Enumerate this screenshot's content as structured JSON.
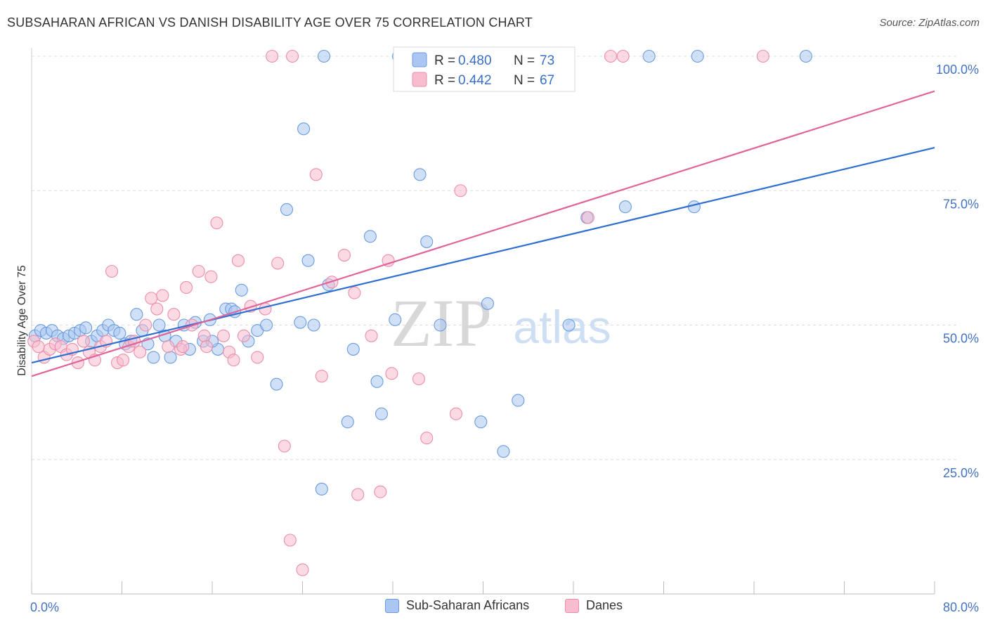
{
  "title": "SUBSAHARAN AFRICAN VS DANISH DISABILITY AGE OVER 75 CORRELATION CHART",
  "source": "Source: ZipAtlas.com",
  "watermark": {
    "zip": "ZIP",
    "atlas": "atlas"
  },
  "legend": {
    "r_label": "R =",
    "n_label": "N =",
    "rows": [
      {
        "r": "0.480",
        "n": "73",
        "color": "#a9c7f0",
        "stroke": "#6a9be0",
        "value_color": "#3a6fc4"
      },
      {
        "r": "0.442",
        "n": "67",
        "color": "#f7bccd",
        "stroke": "#ec8ea9",
        "value_color": "#3a6fc4"
      }
    ]
  },
  "bottom_legend": [
    {
      "label": "Sub-Saharan Africans",
      "color": "#a9c7f0",
      "stroke": "#6a9be0"
    },
    {
      "label": "Danes",
      "color": "#f7bccd",
      "stroke": "#ec8ea9"
    }
  ],
  "chart_data": {
    "type": "scatter",
    "title": "SUBSAHARAN AFRICAN VS DANISH DISABILITY AGE OVER 75 CORRELATION CHART",
    "xlabel": "",
    "ylabel": "Disability Age Over 75",
    "xlim": [
      0,
      80
    ],
    "ylim": [
      0,
      100
    ],
    "x_ticks": [
      "0.0%",
      "80.0%"
    ],
    "y_ticks": [
      {
        "value": 25,
        "label": "25.0%"
      },
      {
        "value": 50,
        "label": "50.0%"
      },
      {
        "value": 75,
        "label": "75.0%"
      },
      {
        "value": 100,
        "label": "100.0%"
      }
    ],
    "grid": true,
    "legend_position": "top-center",
    "series": [
      {
        "name": "Sub-Saharan Africans",
        "color": "#6a9be0",
        "fill": "#a9c7f0",
        "trend": {
          "x": [
            0,
            80
          ],
          "y": [
            43.0,
            83.0
          ],
          "color": "#2f6fd1"
        },
        "points": [
          [
            0.3,
            48
          ],
          [
            0.8,
            49
          ],
          [
            1.3,
            48.5
          ],
          [
            1.8,
            49
          ],
          [
            2.3,
            48
          ],
          [
            2.8,
            47.5
          ],
          [
            3.3,
            48
          ],
          [
            3.8,
            48.5
          ],
          [
            4.3,
            49
          ],
          [
            4.8,
            49.5
          ],
          [
            5.3,
            47
          ],
          [
            5.8,
            48
          ],
          [
            6.3,
            49
          ],
          [
            6.8,
            50
          ],
          [
            7.3,
            49
          ],
          [
            7.8,
            48.5
          ],
          [
            8.3,
            46.5
          ],
          [
            8.8,
            47
          ],
          [
            9.3,
            52
          ],
          [
            9.8,
            49
          ],
          [
            10.3,
            46.5
          ],
          [
            10.8,
            44
          ],
          [
            11.3,
            50
          ],
          [
            11.8,
            48
          ],
          [
            12.3,
            44
          ],
          [
            12.8,
            47
          ],
          [
            13.5,
            50
          ],
          [
            14.0,
            45.5
          ],
          [
            14.5,
            50.5
          ],
          [
            15.2,
            47
          ],
          [
            15.8,
            51
          ],
          [
            16.5,
            45.5
          ],
          [
            17.2,
            53
          ],
          [
            17.7,
            53
          ],
          [
            18.0,
            52.5
          ],
          [
            18.6,
            56.5
          ],
          [
            19.2,
            47
          ],
          [
            20.0,
            49
          ],
          [
            20.8,
            50
          ],
          [
            21.7,
            39
          ],
          [
            22.6,
            71.5
          ],
          [
            23.8,
            50.5
          ],
          [
            24.1,
            86.5
          ],
          [
            24.5,
            62
          ],
          [
            25.0,
            50
          ],
          [
            25.7,
            19.5
          ],
          [
            25.9,
            100
          ],
          [
            26.3,
            57.5
          ],
          [
            28.0,
            32
          ],
          [
            28.5,
            45.5
          ],
          [
            30.0,
            66.5
          ],
          [
            30.6,
            39.5
          ],
          [
            31.0,
            33.5
          ],
          [
            32.2,
            51
          ],
          [
            33.0,
            100
          ],
          [
            34.4,
            78
          ],
          [
            35.0,
            65.5
          ],
          [
            36.2,
            50
          ],
          [
            39.8,
            32
          ],
          [
            40.4,
            54
          ],
          [
            41.8,
            26.5
          ],
          [
            43.1,
            36
          ],
          [
            47.6,
            50
          ],
          [
            49.2,
            70
          ],
          [
            52.6,
            72
          ],
          [
            54.7,
            100
          ],
          [
            58.7,
            72
          ],
          [
            59.0,
            100
          ],
          [
            68.6,
            100
          ],
          [
            32.5,
            100
          ],
          [
            36.8,
            100
          ],
          [
            43.5,
            100
          ],
          [
            16.0,
            47
          ]
        ]
      },
      {
        "name": "Danes",
        "color": "#ec8ea9",
        "fill": "#f7bccd",
        "trend": {
          "x": [
            0,
            80
          ],
          "y": [
            40.5,
            93.5
          ],
          "color": "#e0649a"
        },
        "points": [
          [
            0.2,
            47
          ],
          [
            0.6,
            46
          ],
          [
            1.1,
            44
          ],
          [
            1.6,
            45.5
          ],
          [
            2.1,
            46.5
          ],
          [
            2.6,
            46
          ],
          [
            3.1,
            44.5
          ],
          [
            3.6,
            45.5
          ],
          [
            4.1,
            43
          ],
          [
            4.6,
            47
          ],
          [
            5.1,
            45
          ],
          [
            5.6,
            43.5
          ],
          [
            6.1,
            46
          ],
          [
            6.6,
            47
          ],
          [
            7.1,
            60
          ],
          [
            7.6,
            43
          ],
          [
            8.1,
            43.5
          ],
          [
            8.6,
            46
          ],
          [
            9.1,
            47
          ],
          [
            9.6,
            45
          ],
          [
            10.1,
            50
          ],
          [
            10.6,
            55
          ],
          [
            11.1,
            53
          ],
          [
            11.6,
            55.5
          ],
          [
            12.1,
            46
          ],
          [
            12.6,
            52
          ],
          [
            13.2,
            45.5
          ],
          [
            13.7,
            57
          ],
          [
            14.2,
            50
          ],
          [
            14.8,
            60
          ],
          [
            15.3,
            48
          ],
          [
            15.9,
            59
          ],
          [
            16.4,
            69
          ],
          [
            17.0,
            48
          ],
          [
            17.5,
            45
          ],
          [
            17.9,
            43.5
          ],
          [
            18.3,
            62
          ],
          [
            18.8,
            48
          ],
          [
            19.4,
            53.5
          ],
          [
            20.0,
            44
          ],
          [
            20.7,
            53
          ],
          [
            21.3,
            100
          ],
          [
            21.8,
            61.5
          ],
          [
            22.4,
            27.5
          ],
          [
            22.9,
            10
          ],
          [
            23.1,
            100
          ],
          [
            24.0,
            4.5
          ],
          [
            25.2,
            78
          ],
          [
            25.7,
            40.5
          ],
          [
            26.6,
            58
          ],
          [
            27.7,
            63
          ],
          [
            28.6,
            56
          ],
          [
            28.9,
            18.5
          ],
          [
            30.1,
            48
          ],
          [
            30.9,
            19
          ],
          [
            31.6,
            62
          ],
          [
            31.9,
            41
          ],
          [
            34.3,
            40
          ],
          [
            35.0,
            29
          ],
          [
            37.6,
            33.5
          ],
          [
            38.0,
            75
          ],
          [
            49.3,
            70
          ],
          [
            51.3,
            100
          ],
          [
            64.8,
            100
          ],
          [
            52.4,
            100
          ],
          [
            15.5,
            46
          ],
          [
            13.4,
            46
          ]
        ]
      }
    ]
  }
}
